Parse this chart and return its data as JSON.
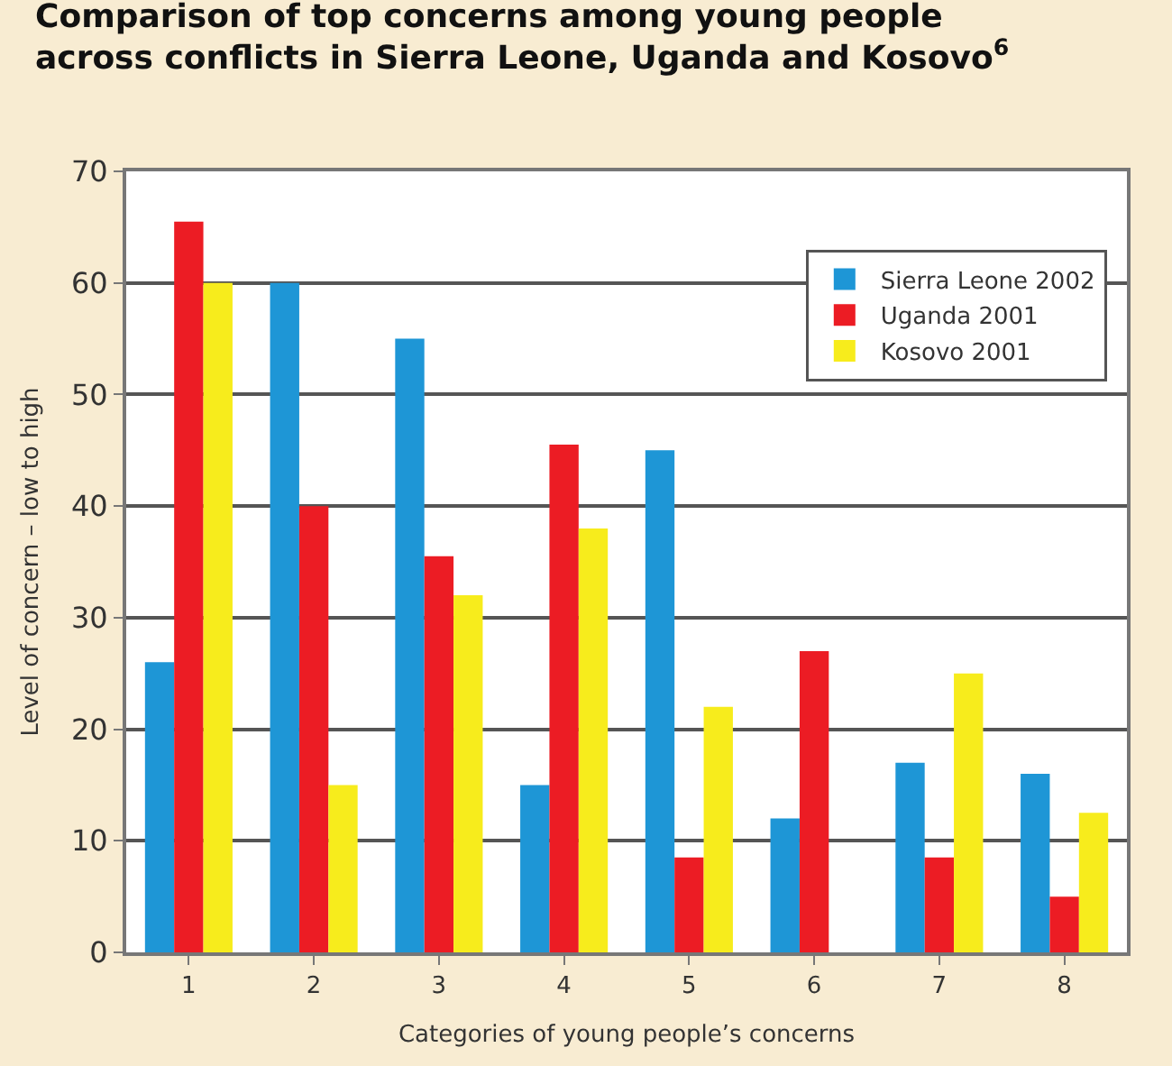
{
  "chart_data": {
    "type": "bar",
    "title": "Comparison of top concerns among young people\nacross conflicts in Sierra Leone, Uganda and Kosovo$^{6}$",
    "xlabel": "Categories of young people’s concerns",
    "ylabel": "Level of concern – low to high",
    "categories": [
      "1",
      "2",
      "3",
      "4",
      "5",
      "6",
      "7",
      "8"
    ],
    "series": [
      {
        "name": "Sierra Leone 2002",
        "color": "#1e96d6",
        "values": [
          26,
          60,
          55,
          15,
          45,
          12,
          17,
          16
        ]
      },
      {
        "name": "Uganda 2001",
        "color": "#ec1c24",
        "values": [
          65.5,
          40,
          35.5,
          45.5,
          8.5,
          27,
          8.5,
          5
        ]
      },
      {
        "name": "Kosovo 2001",
        "color": "#f7ec1c",
        "values": [
          60,
          15,
          32,
          38,
          22,
          null,
          25,
          12.5
        ]
      }
    ],
    "ylim": [
      0,
      70
    ],
    "yticks": [
      0,
      10,
      20,
      30,
      40,
      50,
      60,
      70
    ],
    "grid": "y",
    "legend": "top right"
  }
}
